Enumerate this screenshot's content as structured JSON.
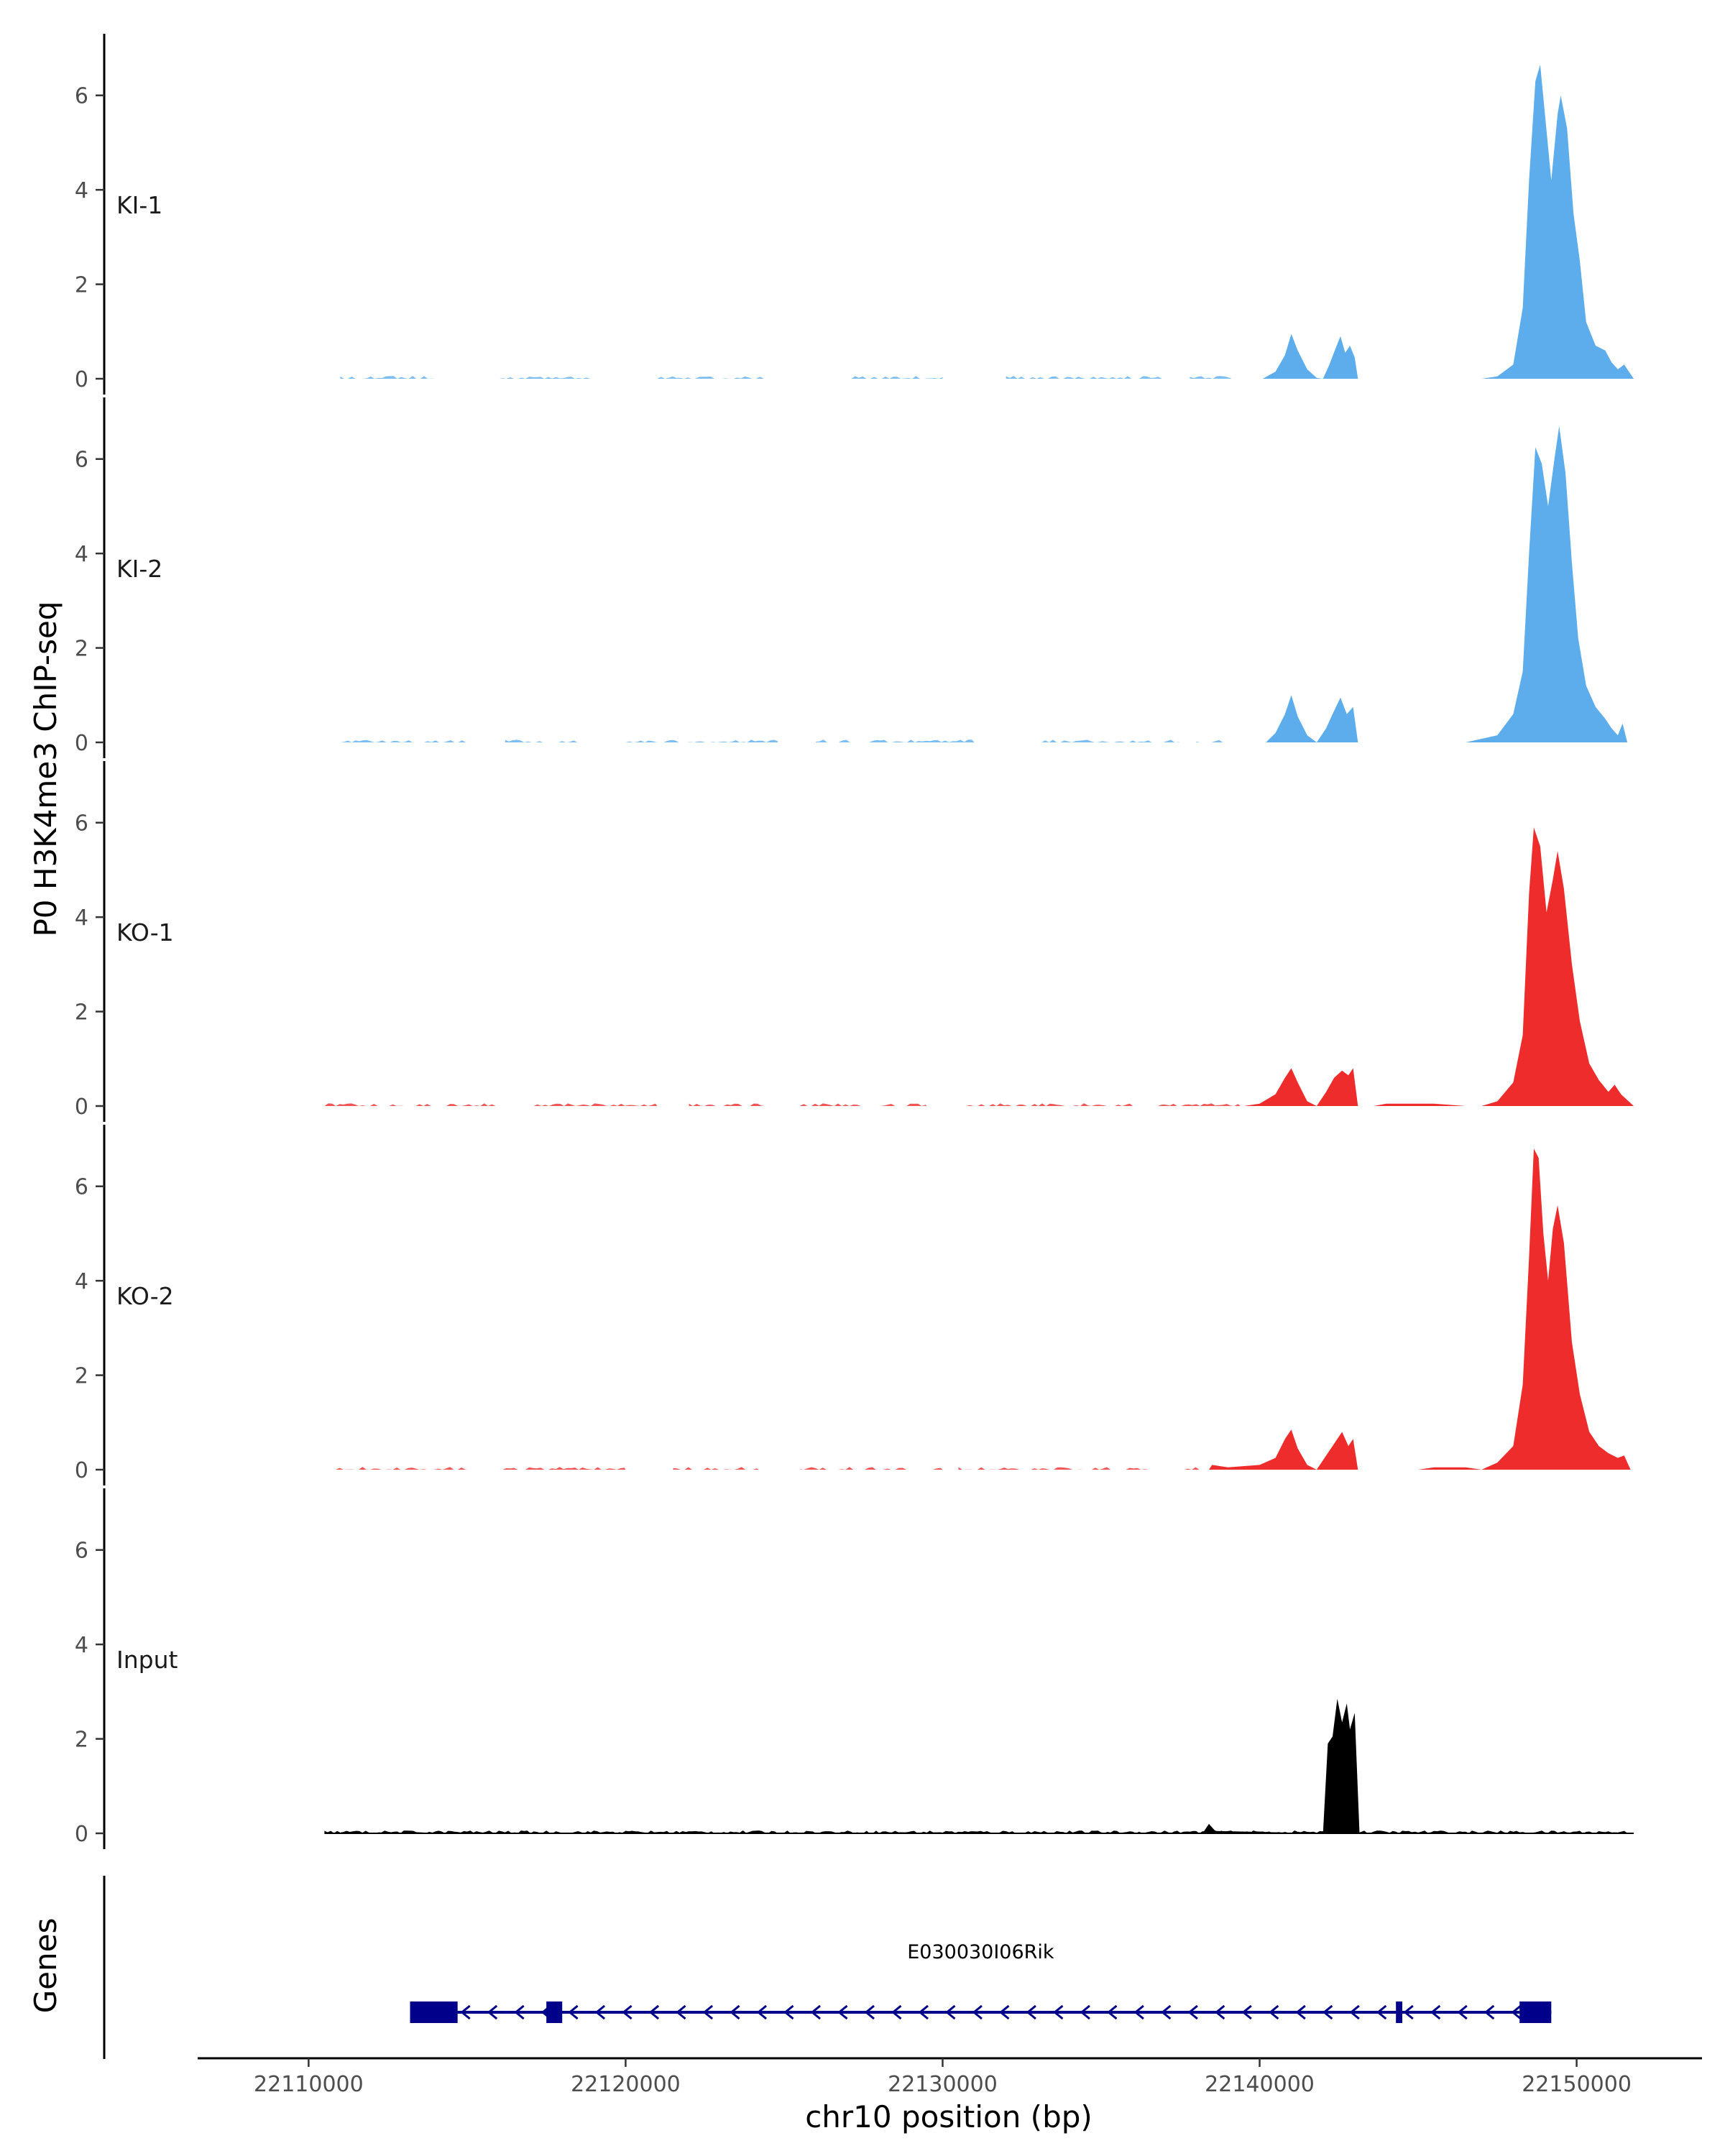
{
  "chart_data": {
    "type": "area",
    "title": "",
    "ylabel": "P0 H3K4me3 ChIP-seq",
    "xlabel": "chr10 position (bp)",
    "xlim": [
      22106500,
      22154000
    ],
    "ylim": [
      0,
      7
    ],
    "x_ticks": [
      22110000,
      22120000,
      22130000,
      22140000,
      22150000
    ],
    "x_tick_labels": [
      "22110000",
      "22120000",
      "22130000",
      "22140000",
      "22150000"
    ],
    "y_ticks": [
      0,
      2,
      4,
      6
    ],
    "y_tick_labels": [
      "0",
      "2",
      "4",
      "6"
    ],
    "tracks": [
      {
        "name": "KI-1",
        "color": "#5DADEC",
        "range": [
          22111000,
          22151800
        ],
        "points": [
          [
            22111000,
            0
          ],
          [
            22140100,
            0
          ],
          [
            22140500,
            0.15
          ],
          [
            22140800,
            0.5
          ],
          [
            22141000,
            0.95
          ],
          [
            22141200,
            0.6
          ],
          [
            22141500,
            0.2
          ],
          [
            22141800,
            0.02
          ],
          [
            22142000,
            0
          ],
          [
            22142200,
            0.3
          ],
          [
            22142400,
            0.65
          ],
          [
            22142550,
            0.9
          ],
          [
            22142700,
            0.55
          ],
          [
            22142850,
            0.7
          ],
          [
            22143000,
            0.45
          ],
          [
            22143100,
            0
          ],
          [
            22147000,
            0
          ],
          [
            22147500,
            0.05
          ],
          [
            22148000,
            0.3
          ],
          [
            22148300,
            1.5
          ],
          [
            22148500,
            4.2
          ],
          [
            22148700,
            6.3
          ],
          [
            22148850,
            6.65
          ],
          [
            22149000,
            5.6
          ],
          [
            22149200,
            4.2
          ],
          [
            22149400,
            5.6
          ],
          [
            22149500,
            6.0
          ],
          [
            22149700,
            5.3
          ],
          [
            22149900,
            3.5
          ],
          [
            22150100,
            2.5
          ],
          [
            22150300,
            1.2
          ],
          [
            22150600,
            0.7
          ],
          [
            22150900,
            0.6
          ],
          [
            22151100,
            0.35
          ],
          [
            22151300,
            0.2
          ],
          [
            22151500,
            0.3
          ],
          [
            22151800,
            0
          ]
        ],
        "noise_segments": [
          [
            22111000,
            22114000
          ],
          [
            22116000,
            22119000
          ],
          [
            22121000,
            22124500
          ],
          [
            22127000,
            22130000
          ],
          [
            22132000,
            22137000
          ],
          [
            22137800,
            22139300
          ]
        ]
      },
      {
        "name": "KI-2",
        "color": "#5DADEC",
        "range": [
          22111000,
          22151600
        ],
        "points": [
          [
            22111000,
            0
          ],
          [
            22140200,
            0
          ],
          [
            22140500,
            0.2
          ],
          [
            22140800,
            0.6
          ],
          [
            22141000,
            1.0
          ],
          [
            22141200,
            0.55
          ],
          [
            22141500,
            0.15
          ],
          [
            22141800,
            0
          ],
          [
            22142100,
            0.3
          ],
          [
            22142300,
            0.6
          ],
          [
            22142550,
            0.95
          ],
          [
            22142750,
            0.6
          ],
          [
            22142950,
            0.75
          ],
          [
            22143100,
            0
          ],
          [
            22146500,
            0
          ],
          [
            22147500,
            0.15
          ],
          [
            22148000,
            0.6
          ],
          [
            22148300,
            1.5
          ],
          [
            22148500,
            4.0
          ],
          [
            22148700,
            6.25
          ],
          [
            22148900,
            5.9
          ],
          [
            22149100,
            5.0
          ],
          [
            22149300,
            6.0
          ],
          [
            22149450,
            6.7
          ],
          [
            22149650,
            5.7
          ],
          [
            22149850,
            3.8
          ],
          [
            22150050,
            2.2
          ],
          [
            22150300,
            1.2
          ],
          [
            22150600,
            0.75
          ],
          [
            22150900,
            0.5
          ],
          [
            22151100,
            0.3
          ],
          [
            22151300,
            0.15
          ],
          [
            22151450,
            0.4
          ],
          [
            22151600,
            0
          ]
        ],
        "noise_segments": [
          [
            22111000,
            22115000
          ],
          [
            22116200,
            22118500
          ],
          [
            22120000,
            22124800
          ],
          [
            22126000,
            22131000
          ],
          [
            22133000,
            22137500
          ],
          [
            22138000,
            22139000
          ]
        ]
      },
      {
        "name": "KO-1",
        "color": "#EE2C2C",
        "range": [
          22110500,
          22151800
        ],
        "points": [
          [
            22110500,
            0
          ],
          [
            22139500,
            0
          ],
          [
            22140000,
            0.05
          ],
          [
            22140500,
            0.25
          ],
          [
            22140800,
            0.6
          ],
          [
            22141000,
            0.8
          ],
          [
            22141200,
            0.5
          ],
          [
            22141500,
            0.1
          ],
          [
            22141800,
            0
          ],
          [
            22142100,
            0.3
          ],
          [
            22142350,
            0.6
          ],
          [
            22142600,
            0.75
          ],
          [
            22142800,
            0.65
          ],
          [
            22142950,
            0.8
          ],
          [
            22143100,
            0
          ],
          [
            22143600,
            0
          ],
          [
            22144000,
            0.05
          ],
          [
            22145500,
            0.05
          ],
          [
            22146500,
            0
          ],
          [
            22147000,
            0
          ],
          [
            22147500,
            0.1
          ],
          [
            22148000,
            0.5
          ],
          [
            22148300,
            1.5
          ],
          [
            22148500,
            4.5
          ],
          [
            22148650,
            5.9
          ],
          [
            22148850,
            5.5
          ],
          [
            22149050,
            4.1
          ],
          [
            22149250,
            4.8
          ],
          [
            22149400,
            5.4
          ],
          [
            22149600,
            4.6
          ],
          [
            22149850,
            3.0
          ],
          [
            22150100,
            1.8
          ],
          [
            22150400,
            0.9
          ],
          [
            22150700,
            0.55
          ],
          [
            22151000,
            0.3
          ],
          [
            22151200,
            0.45
          ],
          [
            22151400,
            0.25
          ],
          [
            22151800,
            0
          ]
        ],
        "noise_segments": [
          [
            22110500,
            22116000
          ],
          [
            22116500,
            22121000
          ],
          [
            22122000,
            22124500
          ],
          [
            22125500,
            22129500
          ],
          [
            22130500,
            22136000
          ],
          [
            22136800,
            22139400
          ]
        ]
      },
      {
        "name": "KO-2",
        "color": "#EE2C2C",
        "range": [
          22110500,
          22151700
        ],
        "points": [
          [
            22110500,
            0
          ],
          [
            22138400,
            0
          ],
          [
            22138500,
            0.1
          ],
          [
            22139000,
            0.05
          ],
          [
            22140000,
            0.1
          ],
          [
            22140500,
            0.25
          ],
          [
            22140800,
            0.65
          ],
          [
            22141000,
            0.85
          ],
          [
            22141200,
            0.45
          ],
          [
            22141500,
            0.1
          ],
          [
            22141800,
            0
          ],
          [
            22142100,
            0.3
          ],
          [
            22142350,
            0.55
          ],
          [
            22142600,
            0.8
          ],
          [
            22142800,
            0.5
          ],
          [
            22142950,
            0.65
          ],
          [
            22143100,
            0
          ],
          [
            22145000,
            0
          ],
          [
            22145500,
            0.05
          ],
          [
            22146500,
            0.05
          ],
          [
            22147000,
            0
          ],
          [
            22147500,
            0.15
          ],
          [
            22148000,
            0.5
          ],
          [
            22148300,
            1.8
          ],
          [
            22148500,
            4.5
          ],
          [
            22148650,
            6.8
          ],
          [
            22148800,
            6.6
          ],
          [
            22148950,
            5.0
          ],
          [
            22149100,
            4.0
          ],
          [
            22149250,
            5.1
          ],
          [
            22149400,
            5.6
          ],
          [
            22149600,
            4.8
          ],
          [
            22149850,
            2.7
          ],
          [
            22150100,
            1.6
          ],
          [
            22150400,
            0.8
          ],
          [
            22150700,
            0.5
          ],
          [
            22151000,
            0.35
          ],
          [
            22151300,
            0.25
          ],
          [
            22151500,
            0.3
          ],
          [
            22151700,
            0
          ]
        ],
        "noise_segments": [
          [
            22110500,
            22115000
          ],
          [
            22116000,
            22120000
          ],
          [
            22121500,
            22124200
          ],
          [
            22125500,
            22130000
          ],
          [
            22130500,
            22137200
          ],
          [
            22137500,
            22138300
          ]
        ]
      },
      {
        "name": "Input",
        "color": "#000000",
        "range": [
          22110500,
          22151800
        ],
        "points": [
          [
            22110500,
            0
          ],
          [
            22138200,
            0
          ],
          [
            22138400,
            0.2
          ],
          [
            22138600,
            0.05
          ],
          [
            22142000,
            0
          ],
          [
            22142150,
            1.9
          ],
          [
            22142300,
            2.05
          ],
          [
            22142450,
            2.85
          ],
          [
            22142600,
            2.35
          ],
          [
            22142750,
            2.75
          ],
          [
            22142850,
            2.2
          ],
          [
            22143000,
            2.55
          ],
          [
            22143150,
            0
          ],
          [
            22151800,
            0
          ]
        ],
        "baseline_noise": 0.06
      }
    ],
    "gene_track": {
      "label": "Genes",
      "gene_name": "E030030I06Rik",
      "strand": "-",
      "color": "#00008B",
      "start": 22113200,
      "end": 22149200,
      "exons": [
        [
          22113200,
          22114700
        ],
        [
          22117500,
          22118000
        ],
        [
          22144300,
          22144500
        ],
        [
          22148200,
          22149200
        ]
      ]
    }
  }
}
